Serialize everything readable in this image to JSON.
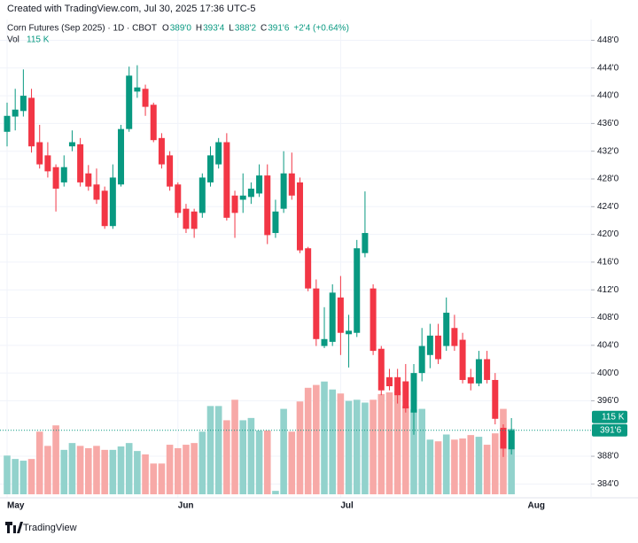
{
  "chart_data": {
    "type": "candlestick",
    "created_note": "Created with TradingView.com, Jul 30, 2025 17:36 UTC-5",
    "title": "Corn Futures (Sep 2025) · 1D · CBOT",
    "ohlc_header": [
      {
        "label": "O",
        "value": "389'0"
      },
      {
        "label": "H",
        "value": "393'4"
      },
      {
        "label": "L",
        "value": "388'2"
      },
      {
        "label": "C",
        "value": "391'6"
      }
    ],
    "change": "+2'4 (+0.64%)",
    "volume_header": {
      "label": "Vol",
      "value": "115 K"
    },
    "brand": "TradingView",
    "categories": [
      "May",
      null,
      null,
      null,
      null,
      null,
      null,
      null,
      null,
      null,
      null,
      null,
      null,
      null,
      null,
      null,
      null,
      null,
      null,
      null,
      null,
      "Jun",
      null,
      null,
      null,
      null,
      null,
      null,
      null,
      null,
      null,
      null,
      null,
      null,
      null,
      null,
      null,
      null,
      null,
      null,
      null,
      "Jul",
      null,
      null,
      null,
      null,
      null,
      null,
      null,
      null,
      null,
      null,
      null,
      null,
      null,
      null,
      null,
      null,
      null,
      null,
      null,
      null,
      null
    ],
    "next_label": "Aug",
    "open": [
      434.8,
      437,
      437.8,
      439.7,
      433.3,
      431.4,
      429.7,
      427.5,
      432.7,
      433,
      428.8,
      427.2,
      426.3,
      421.2,
      427.2,
      435.2,
      440.6,
      441,
      438.7,
      433.9,
      431.4,
      427.2,
      423.7,
      423.3,
      423.1,
      427.5,
      430.1,
      433.3,
      425.6,
      425,
      425.4,
      425.9,
      428.5,
      420.2,
      423.7,
      428.8,
      427.5,
      418,
      412.2,
      403.9,
      404.5,
      410.9,
      405.6,
      405.8,
      417.3,
      412.2,
      403.5,
      399.4,
      399.4,
      398.8,
      394.3,
      400,
      402.6,
      405.4,
      403.9,
      406.5,
      404.8,
      399.4,
      398.5,
      402,
      399,
      392.1,
      389
    ],
    "high": [
      439,
      441,
      443.8,
      441,
      435.8,
      433.3,
      430.1,
      431.4,
      435,
      433.9,
      430,
      429.5,
      426.9,
      430.1,
      435.8,
      444.2,
      444.4,
      441.6,
      439,
      434.6,
      432,
      427.5,
      424.4,
      423.7,
      428.8,
      432.7,
      433.9,
      434.6,
      426.3,
      428.8,
      427.5,
      430.1,
      430.1,
      425,
      432,
      431.8,
      428.2,
      418.2,
      413.5,
      409.5,
      412.8,
      414,
      408.4,
      419.2,
      426.2,
      412.8,
      403.9,
      400.6,
      400.6,
      401.3,
      401.3,
      406.5,
      407.1,
      407.1,
      410.9,
      408.4,
      405.8,
      400.6,
      403.2,
      403.2,
      400,
      392.6,
      393.5
    ],
    "low": [
      432.7,
      435,
      437,
      431.8,
      429.5,
      428.2,
      423.3,
      426.9,
      432,
      426.9,
      426.3,
      424.4,
      420.8,
      420.8,
      426.9,
      434.8,
      439.7,
      437.1,
      433.3,
      429.5,
      426.3,
      422.4,
      420.2,
      419.5,
      422.4,
      426.9,
      429.5,
      422,
      419.5,
      423.1,
      424.4,
      425.4,
      418.6,
      419.5,
      423.1,
      425,
      417.3,
      411.8,
      403.9,
      403.6,
      403.9,
      402.6,
      400.8,
      405.2,
      416.7,
      402.6,
      396.8,
      397.5,
      395.6,
      394.3,
      391.1,
      398.8,
      400.7,
      401.3,
      403.2,
      403.2,
      398.5,
      397.5,
      398.1,
      398.5,
      392.6,
      387.9,
      388.25
    ],
    "close": [
      437.1,
      438,
      440,
      432.7,
      430.1,
      429.1,
      426.6,
      429.7,
      433.3,
      427.5,
      426.9,
      425,
      421.2,
      428.2,
      435.2,
      442.9,
      441.2,
      438.4,
      433.6,
      430.1,
      426.9,
      423.1,
      420.8,
      420.8,
      428.2,
      431.4,
      433.3,
      422.4,
      423.1,
      425.6,
      426.6,
      428.5,
      419.9,
      423.3,
      428.8,
      425.6,
      417.7,
      412.2,
      404.9,
      404.9,
      411.6,
      405.8,
      406.1,
      418,
      420.2,
      403.2,
      397.5,
      398.1,
      396.8,
      394.9,
      400,
      403.9,
      405.4,
      402,
      408.7,
      403.9,
      399,
      398.5,
      402,
      399,
      393.4,
      389.1,
      391.75
    ],
    "volume": [
      68,
      62,
      59,
      62,
      110,
      85,
      121,
      78,
      90,
      85,
      81,
      85,
      78,
      78,
      84,
      90,
      76,
      70,
      54,
      54,
      87,
      81,
      87,
      90,
      110,
      155,
      155,
      130,
      166,
      130,
      134,
      112,
      112,
      6,
      150,
      110,
      163,
      187,
      192,
      198,
      184,
      177,
      164,
      166,
      161,
      166,
      176,
      179,
      181,
      155,
      149,
      150,
      96,
      93,
      105,
      96,
      98,
      104,
      101,
      87,
      107,
      150,
      115
    ],
    "up_color": "#089981",
    "down_color": "#f23645",
    "volume_up_color": "#92d2cc",
    "volume_down_color": "#f7a9a7",
    "ylim": [
      382,
      451
    ],
    "yticks": [
      {
        "value": 384,
        "label": "384'0"
      },
      {
        "value": 388,
        "label": "388'0"
      },
      {
        "value": 396,
        "label": "396'0"
      },
      {
        "value": 400,
        "label": "400'0"
      },
      {
        "value": 404,
        "label": "404'0"
      },
      {
        "value": 408,
        "label": "408'0"
      },
      {
        "value": 412,
        "label": "412'0"
      },
      {
        "value": 416,
        "label": "416'0"
      },
      {
        "value": 420,
        "label": "420'0"
      },
      {
        "value": 424,
        "label": "424'0"
      },
      {
        "value": 428,
        "label": "428'0"
      },
      {
        "value": 432,
        "label": "432'0"
      },
      {
        "value": 436,
        "label": "436'0"
      },
      {
        "value": 440,
        "label": "440'0"
      },
      {
        "value": 444,
        "label": "444'0"
      },
      {
        "value": 448,
        "label": "448'0"
      }
    ],
    "vlim": [
      0,
      280
    ],
    "grid": true
  }
}
